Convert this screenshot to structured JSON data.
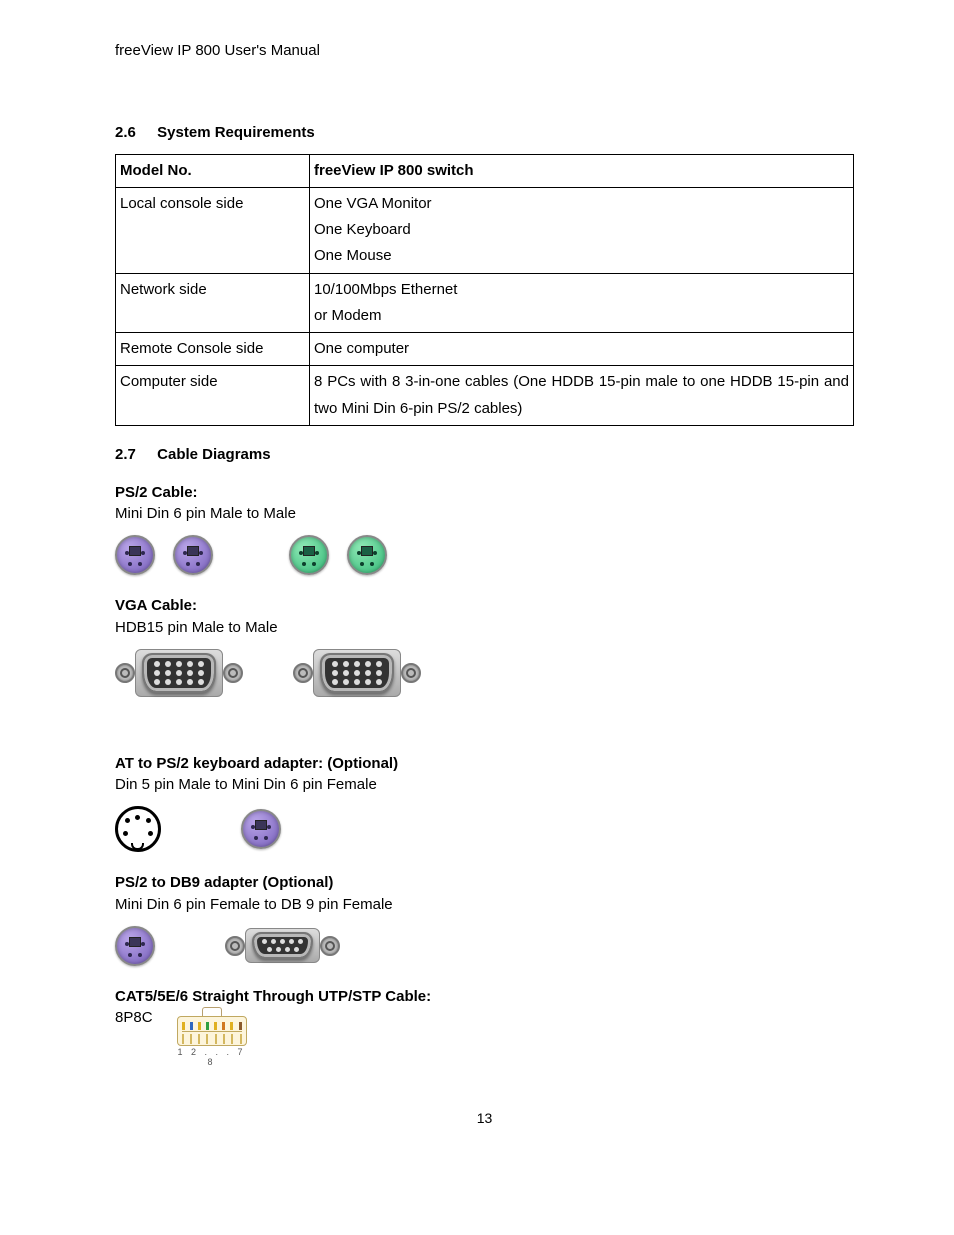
{
  "header": "freeView IP 800 User's Manual",
  "section26": {
    "num": "2.6",
    "title": "System Requirements"
  },
  "table": {
    "rows": [
      {
        "c1": "Model No.",
        "c2": [
          "freeView IP 800 switch"
        ],
        "head": true
      },
      {
        "c1": "Local console side",
        "c2": [
          "One VGA Monitor",
          "One Keyboard",
          "One Mouse"
        ]
      },
      {
        "c1": "Network side",
        "c2": [
          "10/100Mbps Ethernet",
          "or Modem"
        ]
      },
      {
        "c1": "Remote Console side",
        "c2": [
          "One computer"
        ]
      },
      {
        "c1": "Computer side",
        "c2": [
          "8 PCs with 8 3-in-one cables (One HDDB 15-pin male to one HDDB 15-pin and two Mini Din 6-pin PS/2 cables)"
        ],
        "justify": true
      }
    ]
  },
  "section27": {
    "num": "2.7",
    "title": "Cable Diagrams"
  },
  "cables": {
    "ps2": {
      "title": "PS/2 Cable:",
      "desc": "Mini Din 6 pin Male to Male"
    },
    "vga": {
      "title": "VGA Cable:",
      "desc": "HDB15 pin Male to Male"
    },
    "atps2": {
      "title": "AT to PS/2 keyboard adapter: (Optional)",
      "desc": "Din 5 pin Male to Mini Din 6 pin Female"
    },
    "ps2db9": {
      "title": "PS/2 to DB9 adapter (Optional)",
      "desc": "Mini Din 6 pin Female to DB 9 pin Female"
    },
    "cat5": {
      "title": "CAT5/5E/6 Straight Through UTP/STP Cable:",
      "desc": "8P8C"
    }
  },
  "rj45": {
    "wire_colors": [
      "#e0b020",
      "#3068c0",
      "#e0b020",
      "#30a040",
      "#e0b020",
      "#d07820",
      "#e0b020",
      "#8b5a2b"
    ],
    "label": "1 2 . . . 7 8"
  },
  "colors": {
    "ps2_purple": "#8a73c8",
    "ps2_green": "#4fc78a",
    "vga_shell": "#333333",
    "vga_plate": "#b8b8b8"
  },
  "pageNumber": "13"
}
